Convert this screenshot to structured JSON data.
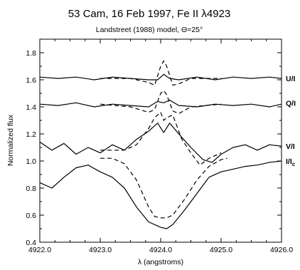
{
  "chart_data": {
    "type": "line",
    "title": "53 Cam, 16 Feb 1997, Fe II λ4923",
    "subtitle": "Landstreet (1988) model, Θ=25°",
    "xlabel": "λ (angstroms)",
    "ylabel": "Normalized flux",
    "xlim": [
      4922.0,
      4926.0
    ],
    "ylim": [
      0.4,
      1.9
    ],
    "xticks": [
      4922.0,
      4923.0,
      4924.0,
      4925.0,
      4926.0
    ],
    "xtick_labels": [
      "4922.0",
      "4923.0",
      "4924.0",
      "4925.0",
      "4926.0"
    ],
    "yticks": [
      0.4,
      0.6,
      0.8,
      1.0,
      1.2,
      1.4,
      1.6,
      1.8
    ],
    "ytick_labels": [
      "0.4",
      "0.6",
      "0.8",
      "1.0",
      "1.2",
      "1.4",
      "1.6",
      "1.8"
    ],
    "grid": false,
    "legend": "none",
    "series": [
      {
        "name": "U/I",
        "style": "solid",
        "label_y": 1.61,
        "x": [
          4922.0,
          4922.3,
          4922.6,
          4922.9,
          4923.2,
          4923.5,
          4923.8,
          4923.95,
          4924.05,
          4924.15,
          4924.3,
          4924.6,
          4924.9,
          4925.2,
          4925.5,
          4925.8,
          4926.0
        ],
        "y": [
          1.62,
          1.61,
          1.62,
          1.6,
          1.62,
          1.61,
          1.6,
          1.6,
          1.64,
          1.61,
          1.6,
          1.62,
          1.6,
          1.62,
          1.61,
          1.62,
          1.61
        ]
      },
      {
        "name": "U/I model",
        "style": "dashed",
        "x": [
          4923.0,
          4923.5,
          4923.8,
          4923.9,
          4924.0,
          4924.05,
          4924.1,
          4924.2,
          4924.3,
          4924.5,
          4925.0
        ],
        "y": [
          1.61,
          1.61,
          1.58,
          1.56,
          1.7,
          1.74,
          1.7,
          1.56,
          1.57,
          1.61,
          1.61
        ]
      },
      {
        "name": "Q/I",
        "style": "solid",
        "label_y": 1.43,
        "x": [
          4922.0,
          4922.3,
          4922.6,
          4922.9,
          4923.2,
          4923.5,
          4923.8,
          4923.95,
          4924.05,
          4924.15,
          4924.3,
          4924.6,
          4924.9,
          4925.2,
          4925.5,
          4925.8,
          4926.0
        ],
        "y": [
          1.42,
          1.41,
          1.43,
          1.4,
          1.42,
          1.41,
          1.4,
          1.44,
          1.43,
          1.45,
          1.41,
          1.4,
          1.42,
          1.41,
          1.42,
          1.4,
          1.42
        ]
      },
      {
        "name": "Q/I model",
        "style": "dashed",
        "x": [
          4923.0,
          4923.5,
          4923.8,
          4923.9,
          4924.0,
          4924.05,
          4924.1,
          4924.2,
          4924.3,
          4924.5,
          4925.0
        ],
        "y": [
          1.42,
          1.4,
          1.36,
          1.38,
          1.5,
          1.52,
          1.49,
          1.37,
          1.35,
          1.4,
          1.42
        ]
      },
      {
        "name": "V/I",
        "style": "solid",
        "label_y": 1.11,
        "x": [
          4922.0,
          4922.2,
          4922.4,
          4922.6,
          4922.8,
          4923.0,
          4923.2,
          4923.4,
          4923.6,
          4923.8,
          4923.95,
          4924.05,
          4924.15,
          4924.3,
          4924.5,
          4924.7,
          4924.85,
          4925.0,
          4925.2,
          4925.4,
          4925.6,
          4925.8,
          4926.0
        ],
        "y": [
          1.14,
          1.08,
          1.13,
          1.05,
          1.1,
          1.06,
          1.12,
          1.08,
          1.16,
          1.22,
          1.28,
          1.21,
          1.28,
          1.2,
          1.1,
          1.01,
          0.99,
          1.05,
          1.1,
          1.12,
          1.08,
          1.12,
          1.11
        ]
      },
      {
        "name": "V/I model",
        "style": "dashed",
        "x": [
          4923.0,
          4923.4,
          4923.6,
          4923.8,
          4923.9,
          4924.0,
          4924.05,
          4924.1,
          4924.2,
          4924.35,
          4924.5,
          4924.65,
          4924.8,
          4925.0
        ],
        "y": [
          1.08,
          1.08,
          1.12,
          1.24,
          1.32,
          1.36,
          1.3,
          1.32,
          1.34,
          1.16,
          1.06,
          0.97,
          1.02,
          1.06
        ]
      },
      {
        "name": "I/Ic",
        "style": "solid",
        "label_y": 1.0,
        "x": [
          4922.0,
          4922.2,
          4922.4,
          4922.6,
          4922.8,
          4923.0,
          4923.2,
          4923.4,
          4923.6,
          4923.8,
          4924.0,
          4924.1,
          4924.2,
          4924.4,
          4924.6,
          4924.8,
          4925.0,
          4925.2,
          4925.4,
          4925.6,
          4925.8,
          4926.0
        ],
        "y": [
          0.84,
          0.8,
          0.88,
          0.95,
          0.97,
          0.92,
          0.88,
          0.8,
          0.66,
          0.55,
          0.51,
          0.5,
          0.53,
          0.64,
          0.76,
          0.88,
          0.92,
          0.94,
          0.96,
          0.97,
          0.99,
          1.0
        ]
      },
      {
        "name": "I/Ic model",
        "style": "dashed",
        "x": [
          4923.0,
          4923.2,
          4923.4,
          4923.6,
          4923.8,
          4923.9,
          4924.0,
          4924.1,
          4924.2,
          4924.4,
          4924.6,
          4924.8,
          4925.0,
          4925.1
        ],
        "y": [
          1.02,
          1.02,
          0.98,
          0.86,
          0.66,
          0.59,
          0.58,
          0.58,
          0.6,
          0.72,
          0.86,
          0.96,
          1.01,
          1.02
        ]
      }
    ],
    "curve_labels": [
      {
        "text": "U/I",
        "sub": "",
        "series": "U/I"
      },
      {
        "text": "Q/I",
        "sub": "",
        "series": "Q/I"
      },
      {
        "text": "V/I",
        "sub": "",
        "series": "V/I"
      },
      {
        "text": "I/I",
        "sub": "c",
        "series": "I/Ic"
      }
    ]
  }
}
